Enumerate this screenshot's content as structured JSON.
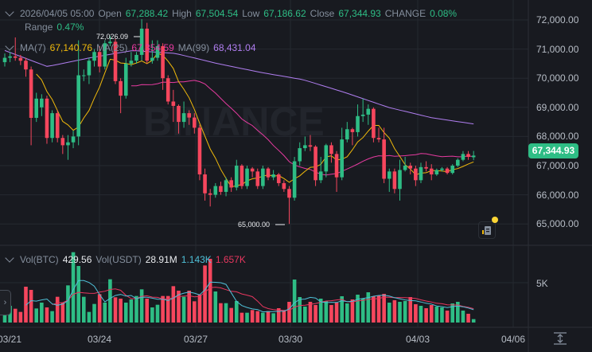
{
  "header": {
    "datetime": "2026/04/05 05:00",
    "open_label": "Open",
    "open": "67,288.42",
    "high_label": "High",
    "high": "67,504.54",
    "low_label": "Low",
    "low": "67,186.62",
    "close_label": "Close",
    "close": "67,344.93",
    "change_label": "CHANGE",
    "change": "0.08%",
    "range_label": "Range",
    "range": "0.47%"
  },
  "ma_legend": {
    "ma7_label": "MA(7)",
    "ma7": "67,140.76",
    "ma25_label": "MA(25)",
    "ma25": "67,354.59",
    "ma99_label": "MA(99)",
    "ma99": "68,431.04"
  },
  "volume_legend": {
    "btc_label": "Vol(BTC)",
    "btc": "429.56",
    "usdt_label": "Vol(USDT)",
    "usdt": "28.91M",
    "ma_short": "1.143K",
    "ma_long": "1.657K"
  },
  "watermark": "BINANCE",
  "current_price": "67,344.93",
  "max_label": "72,026.09",
  "min_label": "65,000.00",
  "colors": {
    "background": "#181a20",
    "up": "#2ebd85",
    "down": "#f6465d",
    "ma7": "#f0b90b",
    "ma25": "#e63ba0",
    "ma99": "#b07ef0",
    "vol_ma_short": "#4fc0d8",
    "vol_ma_long": "#e8375f",
    "grid": "#252930"
  },
  "icons": {
    "collapse": "chevron-down-icon",
    "side_panel": "chevron-right-icon",
    "notes": "notebook-icon",
    "fit": "vertical-fit-icon"
  },
  "chart_data": {
    "type": "candlestick",
    "interval_note": "",
    "price_axis": {
      "ticks": [
        "72,000.00",
        "71,000.00",
        "70,000.00",
        "69,000.00",
        "68,000.00",
        "67,000.00",
        "66,000.00",
        "65,000.00"
      ],
      "tick_values": [
        72000,
        71000,
        70000,
        69000,
        68000,
        67000,
        66000,
        65000
      ]
    },
    "volume_axis": {
      "ticks": [
        "5K"
      ],
      "tick_values": [
        5000
      ]
    },
    "x_ticks": [
      "03/21",
      "03/24",
      "03/27",
      "03/30",
      "04/03",
      "04/06"
    ],
    "grid": true,
    "candles_ohlc": [
      [
        70550,
        70850,
        70400,
        70700
      ],
      [
        70700,
        70900,
        70550,
        70750
      ],
      [
        70750,
        71400,
        70600,
        70700
      ],
      [
        70700,
        70800,
        70450,
        70600
      ],
      [
        70600,
        70700,
        70050,
        70300
      ],
      [
        70300,
        70400,
        67700,
        68640
      ],
      [
        68640,
        69500,
        68500,
        69300
      ],
      [
        69000,
        69450,
        68700,
        69300
      ],
      [
        69300,
        69400,
        67750,
        67950
      ],
      [
        67950,
        68900,
        67800,
        68800
      ],
      [
        68800,
        68900,
        67800,
        67950
      ],
      [
        67950,
        68050,
        67400,
        67700
      ],
      [
        67700,
        68050,
        67200,
        67800
      ],
      [
        67800,
        68200,
        67600,
        68000
      ],
      [
        68000,
        71300,
        67700,
        70100
      ],
      [
        70100,
        70300,
        69900,
        70100
      ],
      [
        70100,
        70700,
        69800,
        70600
      ],
      [
        70600,
        71000,
        70400,
        70900
      ],
      [
        70900,
        71100,
        70200,
        70400
      ],
      [
        70400,
        71300,
        70300,
        71200
      ],
      [
        71200,
        71450,
        71100,
        71250
      ],
      [
        71250,
        71350,
        69800,
        69900
      ],
      [
        69900,
        70000,
        68800,
        69400
      ],
      [
        69400,
        70700,
        69300,
        70500
      ],
      [
        70500,
        70900,
        70400,
        70600
      ],
      [
        70600,
        70900,
        70500,
        70800
      ],
      [
        70800,
        72026.09,
        70600,
        71700
      ],
      [
        71700,
        71900,
        70500,
        70600
      ],
      [
        70600,
        71300,
        70500,
        70700
      ],
      [
        70700,
        71300,
        70600,
        71100
      ],
      [
        71100,
        71200,
        69600,
        70000
      ],
      [
        70000,
        70100,
        69100,
        69200
      ],
      [
        69200,
        69600,
        68500,
        69050
      ],
      [
        69050,
        69100,
        68100,
        68500
      ],
      [
        68500,
        69200,
        68300,
        68800
      ],
      [
        68800,
        68900,
        68400,
        68650
      ],
      [
        68650,
        68800,
        68100,
        68300
      ],
      [
        68300,
        68400,
        66500,
        66700
      ],
      [
        66700,
        66900,
        65800,
        66050
      ],
      [
        66050,
        66200,
        65600,
        66000
      ],
      [
        66000,
        66400,
        65900,
        66300
      ],
      [
        66300,
        66450,
        66000,
        66100
      ],
      [
        66100,
        66600,
        65950,
        66500
      ],
      [
        66500,
        66600,
        66100,
        66250
      ],
      [
        66250,
        67200,
        66150,
        67000
      ],
      [
        67000,
        67050,
        66200,
        66300
      ],
      [
        66300,
        67000,
        66200,
        66900
      ],
      [
        66900,
        66950,
        66600,
        66800
      ],
      [
        66800,
        66900,
        66200,
        66300
      ],
      [
        66300,
        67000,
        66200,
        66900
      ],
      [
        66900,
        66950,
        66500,
        66600
      ],
      [
        66600,
        66850,
        66500,
        66700
      ],
      [
        66700,
        66750,
        66300,
        66400
      ],
      [
        66400,
        66500,
        66100,
        66200
      ],
      [
        66200,
        66300,
        65000,
        65900
      ],
      [
        65900,
        67300,
        65800,
        67150
      ],
      [
        67150,
        67800,
        67000,
        67600
      ],
      [
        67600,
        68000,
        67500,
        67700
      ],
      [
        67700,
        68050,
        67500,
        67650
      ],
      [
        67650,
        67700,
        66300,
        66500
      ],
      [
        66500,
        67300,
        66400,
        66800
      ],
      [
        66800,
        67750,
        66600,
        67700
      ],
      [
        67700,
        67800,
        67100,
        67400
      ],
      [
        67400,
        67500,
        66100,
        66600
      ],
      [
        66600,
        68300,
        66500,
        67900
      ],
      [
        67900,
        68500,
        67800,
        68250
      ],
      [
        68250,
        68300,
        67700,
        68150
      ],
      [
        68150,
        69100,
        68000,
        68700
      ],
      [
        68700,
        69300,
        68500,
        68750
      ],
      [
        68750,
        69100,
        68400,
        68950
      ],
      [
        68950,
        69000,
        67800,
        67950
      ],
      [
        67950,
        68300,
        67800,
        67900
      ],
      [
        67900,
        68300,
        66400,
        66550
      ],
      [
        66550,
        66900,
        66100,
        66800
      ],
      [
        66800,
        66900,
        66050,
        66200
      ],
      [
        66200,
        67200,
        65800,
        66850
      ],
      [
        66850,
        67300,
        66800,
        67000
      ],
      [
        67000,
        67100,
        66700,
        66900
      ],
      [
        66900,
        67000,
        66300,
        66500
      ],
      [
        66500,
        67100,
        66400,
        66950
      ],
      [
        66950,
        67150,
        66800,
        66900
      ],
      [
        66900,
        67050,
        66500,
        66700
      ],
      [
        66700,
        66900,
        66650,
        66850
      ],
      [
        66850,
        66950,
        66800,
        66900
      ],
      [
        66900,
        66950,
        66700,
        66750
      ],
      [
        66750,
        67050,
        66700,
        67000
      ],
      [
        67000,
        67250,
        66950,
        67200
      ],
      [
        67200,
        67500,
        67150,
        67400
      ],
      [
        67400,
        67500,
        67200,
        67300
      ],
      [
        67288.42,
        67504.54,
        67186.62,
        67344.93
      ]
    ],
    "volumes": [
      1167,
      2100,
      1733,
      1333,
      4500,
      4100,
      1767,
      2500,
      1900,
      1433,
      3233,
      2500,
      4667,
      8833,
      7100,
      3233,
      1333,
      2333,
      3567,
      2500,
      5433,
      3167,
      3000,
      2500,
      2900,
      3333,
      4167,
      3000,
      1900,
      2233,
      3333,
      3333,
      4567,
      4000,
      3233,
      4000,
      2667,
      3500,
      7167,
      8000,
      3900,
      2433,
      2433,
      1833,
      2700,
      1233,
      1233,
      1567,
      1433,
      1233,
      1433,
      1167,
      1800,
      1500,
      2600,
      5400,
      3200,
      2000,
      2600,
      2200,
      3000,
      2700,
      2200,
      2500,
      3300,
      2400,
      2900,
      3500,
      3000,
      3800,
      3300,
      3400,
      3600,
      2500,
      2800,
      2600,
      2700,
      3200,
      2300,
      2100,
      1800,
      2200,
      2000,
      1900,
      1500,
      2400,
      2600,
      1500,
      1100,
      429.56
    ],
    "ma99_samples": [
      70950,
      70400,
      70700,
      70950,
      70850,
      70500,
      70200,
      69950,
      69500,
      69000,
      68650,
      68431.04
    ]
  }
}
